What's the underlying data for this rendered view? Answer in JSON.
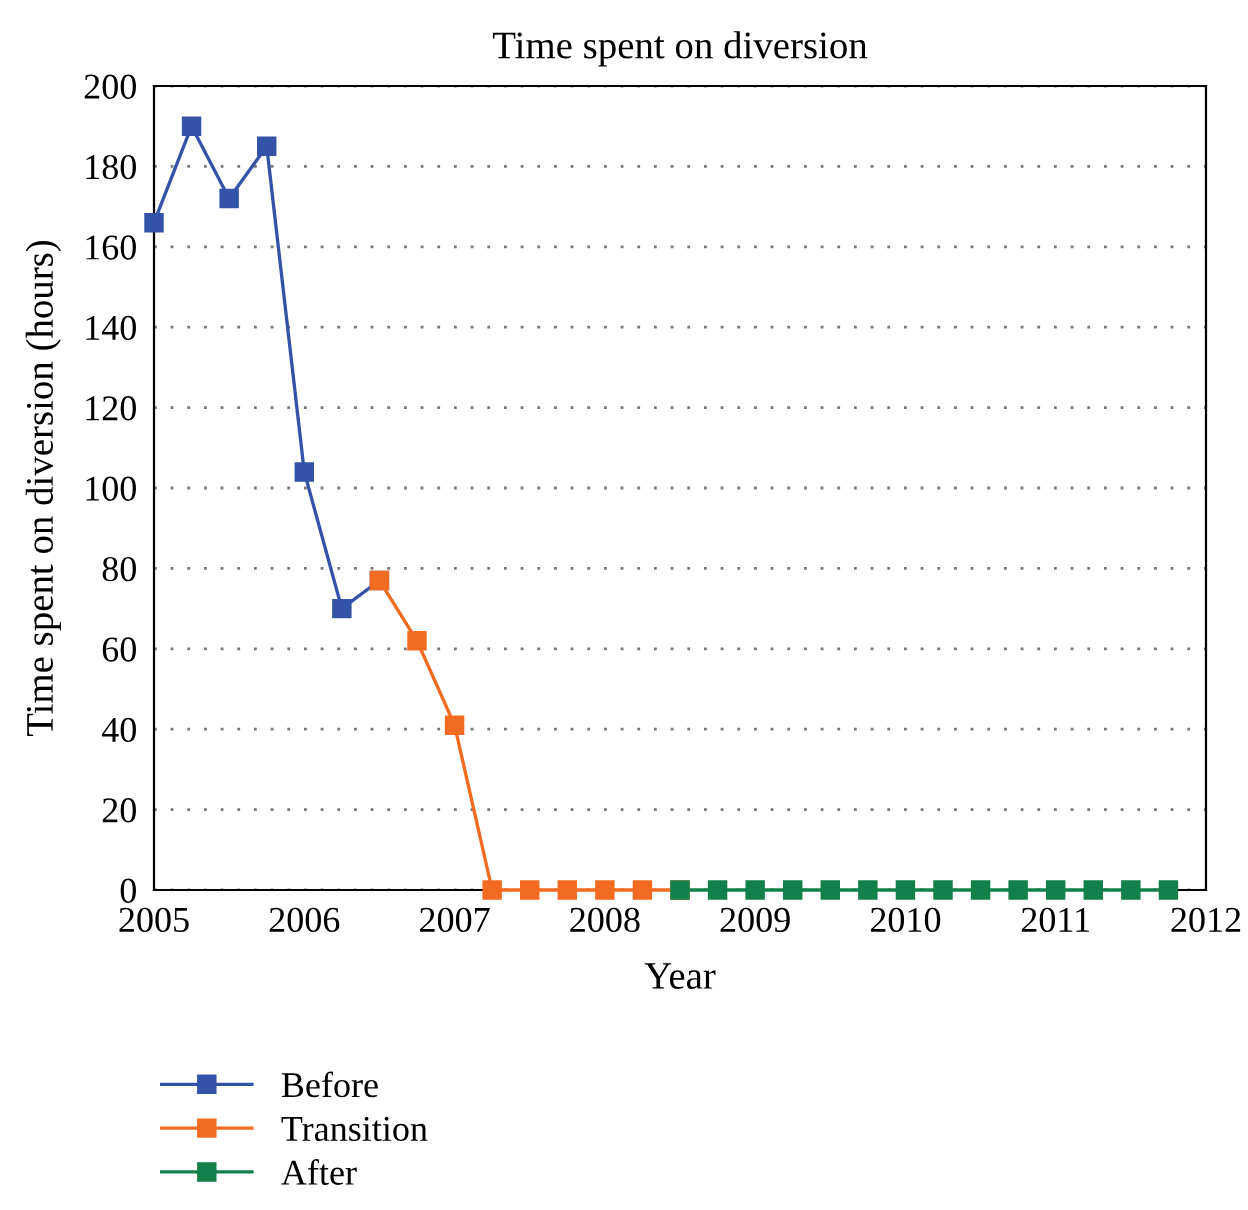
{
  "chart_data": {
    "type": "line",
    "title": "Time spent on diversion",
    "xlabel": "Year",
    "ylabel": "Time spent on diversion (hours)",
    "series": [
      {
        "name": "Before",
        "color": "#3353a8",
        "x": [
          2005,
          2005.25,
          2005.5,
          2005.75,
          2006,
          2006.25,
          2006.5
        ],
        "values": [
          166,
          190,
          172,
          185,
          104,
          70,
          77
        ]
      },
      {
        "name": "Transition",
        "color": "#f26b21",
        "x": [
          2006.5,
          2006.75,
          2007,
          2007.25,
          2007.5,
          2007.75,
          2008,
          2008.25,
          2008.5
        ],
        "values": [
          77,
          62,
          41,
          0,
          0,
          0,
          0,
          0,
          0
        ]
      },
      {
        "name": "After",
        "color": "#12804a",
        "x": [
          2008.5,
          2008.75,
          2009,
          2009.25,
          2009.5,
          2009.75,
          2010,
          2010.25,
          2010.5,
          2010.75,
          2011,
          2011.25,
          2011.5,
          2011.75
        ],
        "values": [
          0,
          0,
          0,
          0,
          0,
          0,
          0,
          0,
          0,
          0,
          0,
          0,
          0,
          0
        ]
      }
    ],
    "xlim": [
      2005,
      2012
    ],
    "xticks": [
      2005,
      2006,
      2007,
      2008,
      2009,
      2010,
      2011,
      2012
    ],
    "ylim": [
      0,
      200
    ],
    "yticks": [
      0,
      20,
      40,
      60,
      80,
      100,
      120,
      140,
      160,
      180,
      200
    ],
    "grid": "y",
    "legend": "bottom",
    "marker": "square",
    "line_style": "solid"
  }
}
